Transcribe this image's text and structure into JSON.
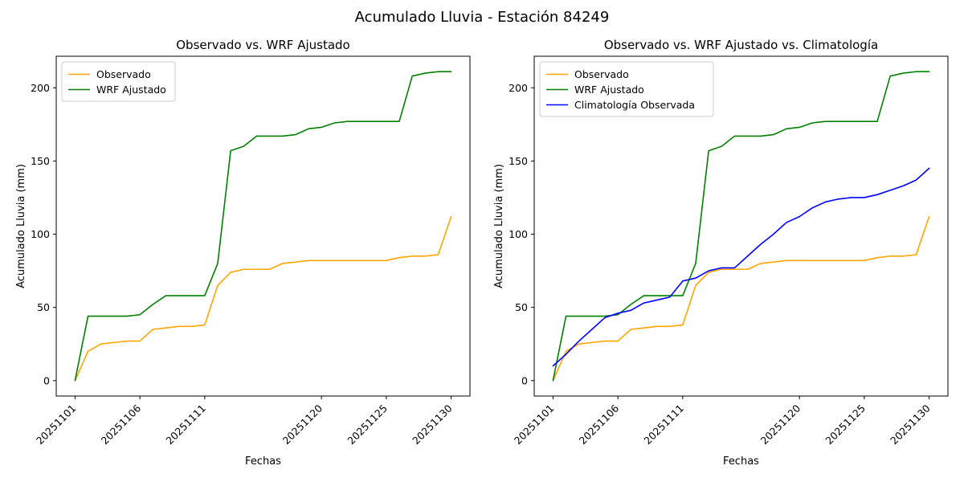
{
  "figure": {
    "title": "Acumulado Lluvia - Estación 84249",
    "background": "#ffffff"
  },
  "chart_data": [
    {
      "type": "line",
      "title": "Observado vs. WRF Ajustado",
      "xlabel": "Fechas",
      "ylabel": "Acumulado Lluvia (mm)",
      "grid": false,
      "legend_position": "upper-left",
      "ylim": [
        -10.55,
        221.55
      ],
      "yticks": [
        0,
        50,
        100,
        150,
        200
      ],
      "xticks": [
        "20251101",
        "20251106",
        "20251111",
        "20251120",
        "20251125",
        "20251130"
      ],
      "categories": [
        "20251101",
        "20251102",
        "20251103",
        "20251104",
        "20251105",
        "20251106",
        "20251107",
        "20251108",
        "20251109",
        "20251110",
        "20251111",
        "20251112",
        "20251113",
        "20251114",
        "20251115",
        "20251116",
        "20251117",
        "20251118",
        "20251119",
        "20251120",
        "20251121",
        "20251122",
        "20251123",
        "20251124",
        "20251125",
        "20251126",
        "20251127",
        "20251128",
        "20251129",
        "20251130"
      ],
      "series": [
        {
          "name": "Observado",
          "color": "#FFA500",
          "values": [
            0,
            20,
            25,
            26,
            27,
            27,
            35,
            36,
            37,
            37,
            38,
            65,
            74,
            76,
            76,
            76,
            80,
            81,
            82,
            82,
            82,
            82,
            82,
            82,
            82,
            84,
            85,
            85,
            86,
            112
          ]
        },
        {
          "name": "WRF Ajustado",
          "color": "#008000",
          "values": [
            0,
            44,
            44,
            44,
            44,
            45,
            52,
            58,
            58,
            58,
            58,
            80,
            157,
            160,
            167,
            167,
            167,
            168,
            172,
            173,
            176,
            177,
            177,
            177,
            177,
            177,
            208,
            210,
            211,
            211
          ]
        }
      ]
    },
    {
      "type": "line",
      "title": "Observado vs. WRF Ajustado vs. Climatología",
      "xlabel": "Fechas",
      "ylabel": "Acumulado Lluvia (mm)",
      "grid": false,
      "legend_position": "upper-left",
      "ylim": [
        -10.55,
        221.55
      ],
      "yticks": [
        0,
        50,
        100,
        150,
        200
      ],
      "xticks": [
        "20251101",
        "20251106",
        "20251111",
        "20251120",
        "20251125",
        "20251130"
      ],
      "categories": [
        "20251101",
        "20251102",
        "20251103",
        "20251104",
        "20251105",
        "20251106",
        "20251107",
        "20251108",
        "20251109",
        "20251110",
        "20251111",
        "20251112",
        "20251113",
        "20251114",
        "20251115",
        "20251116",
        "20251117",
        "20251118",
        "20251119",
        "20251120",
        "20251121",
        "20251122",
        "20251123",
        "20251124",
        "20251125",
        "20251126",
        "20251127",
        "20251128",
        "20251129",
        "20251130"
      ],
      "series": [
        {
          "name": "Observado",
          "color": "#FFA500",
          "values": [
            0,
            20,
            25,
            26,
            27,
            27,
            35,
            36,
            37,
            37,
            38,
            65,
            74,
            76,
            76,
            76,
            80,
            81,
            82,
            82,
            82,
            82,
            82,
            82,
            82,
            84,
            85,
            85,
            86,
            112
          ]
        },
        {
          "name": "WRF Ajustado",
          "color": "#008000",
          "values": [
            0,
            44,
            44,
            44,
            44,
            45,
            52,
            58,
            58,
            58,
            58,
            80,
            157,
            160,
            167,
            167,
            167,
            168,
            172,
            173,
            176,
            177,
            177,
            177,
            177,
            177,
            208,
            210,
            211,
            211
          ]
        },
        {
          "name": "Climatología Observada",
          "color": "#0000FF",
          "values": [
            10,
            18,
            27,
            35,
            43,
            46,
            48,
            53,
            55,
            57,
            68,
            70,
            75,
            77,
            77,
            85,
            93,
            100,
            108,
            112,
            118,
            122,
            124,
            125,
            125,
            127,
            130,
            133,
            137,
            145
          ]
        }
      ]
    }
  ]
}
